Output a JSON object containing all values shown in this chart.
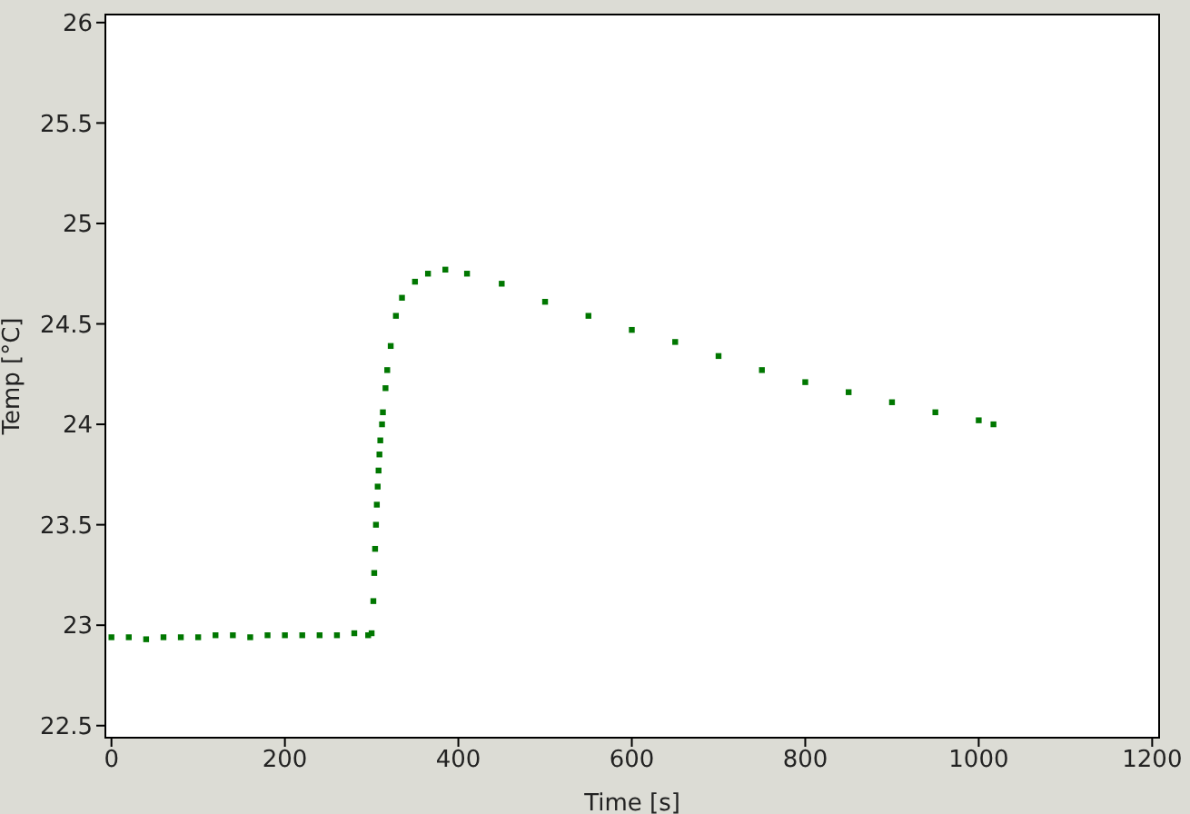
{
  "chart_data": {
    "type": "scatter",
    "xlabel": "Time [s]",
    "ylabel": "Temp [°C]",
    "xlim": [
      -7,
      1208
    ],
    "ylim": [
      22.44,
      26.04
    ],
    "xticks": [
      0,
      200,
      400,
      600,
      800,
      1000,
      1200
    ],
    "yticks": [
      22.5,
      23,
      23.5,
      24,
      24.5,
      25,
      25.5,
      26
    ],
    "legend": false,
    "marker": "square",
    "series": [
      {
        "color": "#007700",
        "x": [
          0,
          20,
          40,
          60,
          80,
          100,
          120,
          140,
          160,
          180,
          200,
          220,
          240,
          260,
          280,
          296,
          300,
          302,
          303,
          304,
          305,
          306,
          307,
          308,
          309,
          310,
          312,
          313,
          316,
          318,
          322,
          328,
          335,
          350,
          365,
          385,
          410,
          450,
          500,
          550,
          600,
          650,
          700,
          750,
          800,
          850,
          900,
          950,
          1000,
          1017
        ],
        "values": [
          22.94,
          22.94,
          22.93,
          22.94,
          22.94,
          22.94,
          22.95,
          22.95,
          22.94,
          22.95,
          22.95,
          22.95,
          22.95,
          22.95,
          22.96,
          22.95,
          22.96,
          23.12,
          23.26,
          23.38,
          23.5,
          23.6,
          23.69,
          23.77,
          23.85,
          23.92,
          24.0,
          24.06,
          24.18,
          24.27,
          24.39,
          24.54,
          24.63,
          24.71,
          24.75,
          24.77,
          24.75,
          24.7,
          24.61,
          24.54,
          24.47,
          24.41,
          24.34,
          24.27,
          24.21,
          24.16,
          24.11,
          24.06,
          24.02,
          24.0
        ]
      }
    ]
  }
}
